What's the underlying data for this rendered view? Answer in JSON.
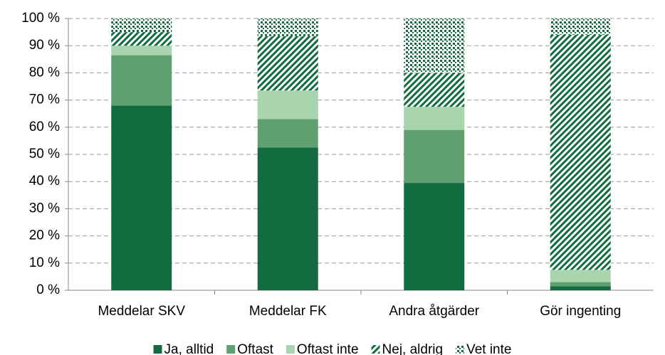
{
  "chart_data": {
    "type": "stacked_bar",
    "categories": [
      "Meddelar SKV",
      "Meddelar FK",
      "Andra åtgärder",
      "Gör ingenting"
    ],
    "series": [
      {
        "name": "Ja, alltid",
        "color": "#136b40",
        "values": [
          68,
          52.5,
          39.5,
          1.5
        ]
      },
      {
        "name": "Oftast",
        "color": "#5fa070",
        "values": [
          18.5,
          10.5,
          19.5,
          1.5
        ]
      },
      {
        "name": "Oftast inte",
        "color": "#a8d5ae",
        "values": [
          3.5,
          10.5,
          8.5,
          4.5
        ]
      },
      {
        "name": "Nej, aldrig",
        "color": "#136b40",
        "pattern": "diagonal",
        "values": [
          5,
          20,
          12.5,
          86.5
        ]
      },
      {
        "name": "Vet inte",
        "color": "#136b40",
        "pattern": "dots",
        "values": [
          5,
          6.5,
          20,
          6
        ]
      }
    ],
    "ylim": [
      0,
      100
    ],
    "yticks": [
      {
        "value": 0,
        "label": "0 %"
      },
      {
        "value": 10,
        "label": "10 %"
      },
      {
        "value": 20,
        "label": "20 %"
      },
      {
        "value": 30,
        "label": "30 %"
      },
      {
        "value": 40,
        "label": "40 %"
      },
      {
        "value": 50,
        "label": "50 %"
      },
      {
        "value": 60,
        "label": "60 %"
      },
      {
        "value": 70,
        "label": "70 %"
      },
      {
        "value": 80,
        "label": "80 %"
      },
      {
        "value": 90,
        "label": "90 %"
      },
      {
        "value": 100,
        "label": "100 %"
      }
    ],
    "grid": true,
    "legend": "bottom"
  }
}
